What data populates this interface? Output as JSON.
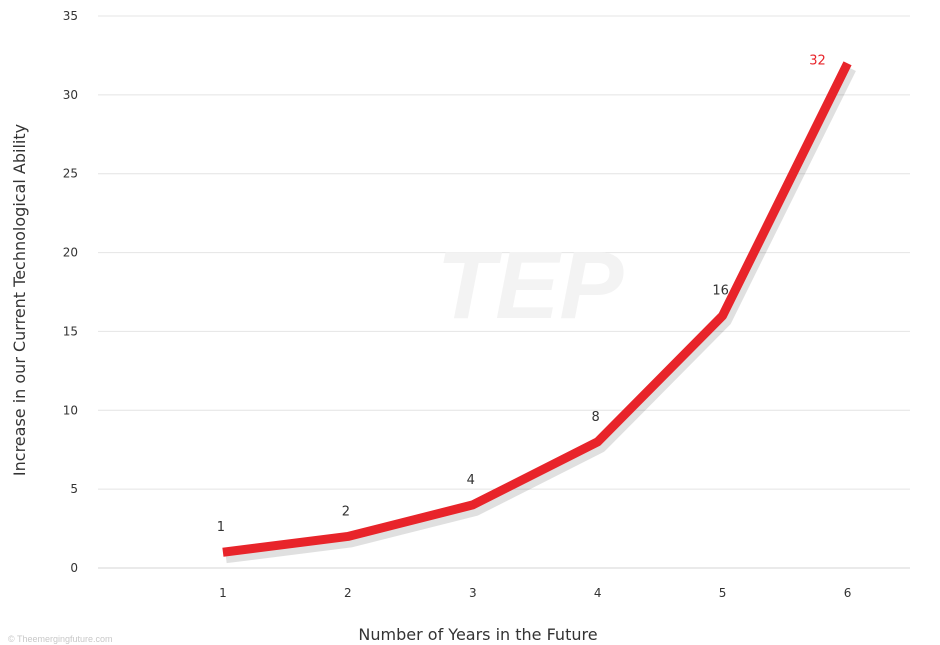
{
  "chart_data": {
    "type": "line",
    "x": [
      1,
      2,
      3,
      4,
      5,
      6
    ],
    "series": [
      {
        "values": [
          1,
          2,
          4,
          8,
          16,
          32
        ],
        "color": "#e8242a"
      }
    ],
    "data_labels": [
      "1",
      "2",
      "4",
      "8",
      "16",
      "32"
    ],
    "xticks": [
      "1",
      "2",
      "3",
      "4",
      "5",
      "6"
    ],
    "yticks": [
      0,
      5,
      10,
      15,
      20,
      25,
      30,
      35
    ],
    "xlim": [
      0,
      6.5
    ],
    "ylim": [
      0,
      35
    ],
    "xlabel": "Number of Years in the Future",
    "ylabel": "Increase in our Current Technological Ability",
    "grid": "horizontal",
    "watermark": "TEP",
    "credit": "© Theemergingfuture.com"
  }
}
